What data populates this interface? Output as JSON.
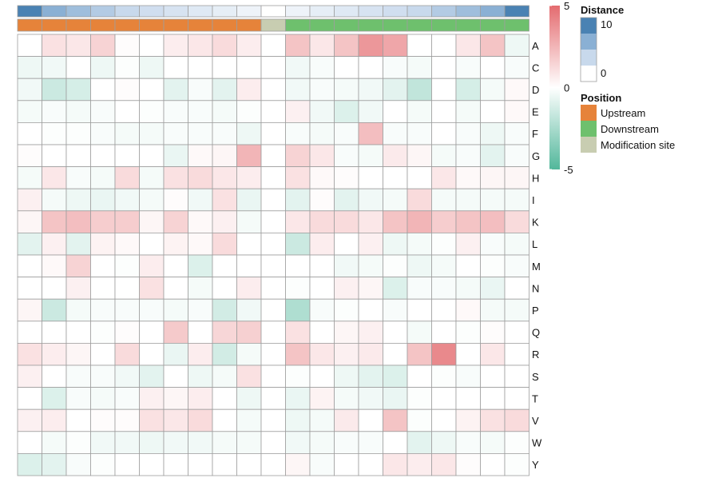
{
  "chart_data": {
    "type": "heatmap",
    "rows": [
      "A",
      "C",
      "D",
      "E",
      "F",
      "G",
      "H",
      "I",
      "K",
      "L",
      "M",
      "N",
      "P",
      "Q",
      "R",
      "S",
      "T",
      "V",
      "W",
      "Y"
    ],
    "column_count": 21,
    "distance": [
      10,
      9,
      8,
      7,
      6,
      5,
      4,
      3,
      2,
      1,
      0,
      1,
      2,
      3,
      4,
      5,
      6,
      7,
      8,
      9,
      10
    ],
    "position": [
      "Upstream",
      "Upstream",
      "Upstream",
      "Upstream",
      "Upstream",
      "Upstream",
      "Upstream",
      "Upstream",
      "Upstream",
      "Upstream",
      "Modification site",
      "Downstream",
      "Downstream",
      "Downstream",
      "Downstream",
      "Downstream",
      "Downstream",
      "Downstream",
      "Downstream",
      "Downstream",
      "Downstream"
    ],
    "values": [
      [
        0,
        1,
        0.8,
        1.5,
        0.1,
        0,
        0.6,
        0.8,
        1.2,
        0.6,
        0,
        2,
        0.8,
        2,
        3.5,
        3,
        0,
        0,
        0.8,
        2,
        -0.5
      ],
      [
        -0.5,
        -0.4,
        0,
        -0.5,
        -0.1,
        -0.5,
        0,
        0,
        0,
        0,
        0,
        -0.4,
        -0.2,
        0,
        0,
        -0.2,
        -0.3,
        0,
        -0.2,
        0,
        -0.2
      ],
      [
        -0.4,
        -1.5,
        -1.2,
        0,
        0.1,
        0,
        -0.8,
        -0.2,
        -0.8,
        0.6,
        0,
        -0.4,
        -0.2,
        -0.3,
        -0.4,
        -0.8,
        -1.8,
        0,
        -1.2,
        -0.3,
        0.2
      ],
      [
        -0.3,
        -0.2,
        -0.3,
        -0.2,
        0,
        -0.1,
        -0.2,
        -0.2,
        -0.3,
        -0.1,
        0,
        0.5,
        -0.4,
        -1,
        -0.4,
        0,
        -0.3,
        0,
        -0.3,
        0,
        0.2
      ],
      [
        0,
        -0.1,
        -0.1,
        -0.2,
        -0.3,
        -0.3,
        -0.2,
        -0.2,
        -0.2,
        -0.5,
        0,
        -0.2,
        -0.3,
        -0.2,
        2.2,
        -0.2,
        -0.2,
        0,
        -0.2,
        -0.5,
        -0.2
      ],
      [
        0.1,
        0,
        0,
        0,
        0,
        0,
        -0.6,
        0.2,
        0.3,
        2.5,
        0,
        1.5,
        0.8,
        -0.2,
        -0.3,
        0.7,
        0.3,
        -0.3,
        -0.2,
        -0.8,
        -0.2
      ],
      [
        -0.3,
        0.8,
        -0.2,
        -0.3,
        1.2,
        -0.3,
        1,
        1.2,
        0.8,
        0.6,
        0,
        1,
        0.2,
        0.1,
        0,
        0,
        0,
        0.8,
        0.2,
        0.3,
        0.3
      ],
      [
        0.5,
        -0.3,
        -0.5,
        -0.6,
        -0.4,
        -0.3,
        0.1,
        -0.4,
        1,
        -0.6,
        0,
        -0.8,
        0.1,
        -0.8,
        -0.4,
        -0.3,
        1.2,
        -0.3,
        -0.3,
        -0.3,
        -0.3
      ],
      [
        0.3,
        2,
        2.2,
        1.7,
        1.7,
        0.3,
        1.5,
        0.2,
        0.5,
        -0.3,
        0,
        0.8,
        1.2,
        1.2,
        0.8,
        2,
        2.5,
        1.7,
        2,
        2.2,
        1.2
      ],
      [
        -0.8,
        0.5,
        -0.8,
        0.4,
        0.2,
        0,
        0.4,
        0.2,
        1.2,
        0,
        0,
        -1.5,
        0.6,
        0,
        0.5,
        -0.5,
        -0.3,
        -0.1,
        0.5,
        -0.2,
        -0.3
      ],
      [
        0,
        0.2,
        1.5,
        0,
        -0.1,
        0.6,
        0,
        -1,
        0,
        0,
        0,
        0,
        0,
        -0.4,
        -0.3,
        -0.1,
        -0.5,
        -0.3,
        0,
        -0.1,
        -0.2
      ],
      [
        0,
        0,
        0.5,
        0,
        0,
        1,
        0,
        -0.3,
        0,
        0.6,
        0,
        -0.1,
        0,
        0.5,
        0.3,
        -1,
        -0.2,
        -0.2,
        -0.3,
        -0.6,
        0
      ],
      [
        0.3,
        -1.5,
        -0.3,
        -0.2,
        -0.2,
        -0.2,
        -0.3,
        -0.2,
        -1.3,
        -0.4,
        0,
        -2.3,
        -0.2,
        -0.1,
        0,
        -0.2,
        0,
        0,
        0.2,
        -0.3,
        -0.3
      ],
      [
        0,
        0,
        0,
        -0.1,
        0.1,
        0,
        1.8,
        0,
        1.4,
        1.6,
        0,
        1,
        0,
        0.3,
        0.5,
        0,
        -0.3,
        0,
        -0.1,
        0.1,
        0
      ],
      [
        1,
        0.6,
        0.3,
        0,
        1.2,
        0,
        -0.6,
        0.6,
        -1.3,
        -0.3,
        0,
        2,
        0.8,
        0.5,
        0.7,
        0,
        2,
        4,
        0,
        0.8,
        0
      ],
      [
        0.5,
        0,
        -0.2,
        -0.2,
        -0.4,
        -0.8,
        0,
        -0.5,
        -0.3,
        1,
        0,
        -0.1,
        0,
        -0.5,
        -0.8,
        -1,
        0,
        -0.1,
        -0.2,
        0,
        0
      ],
      [
        0,
        -1,
        -0.2,
        -0.3,
        -0.2,
        0.5,
        0.3,
        0.6,
        0,
        -0.5,
        0,
        -0.6,
        0.4,
        -0.3,
        -0.4,
        -0.6,
        -0.1,
        0,
        0,
        0,
        0
      ],
      [
        0.5,
        0.6,
        0,
        0.1,
        0.1,
        1,
        0.8,
        1.2,
        0,
        -0.3,
        0,
        -0.5,
        -0.3,
        0.7,
        0,
        2,
        -0.1,
        0,
        0.4,
        1,
        1.2
      ],
      [
        0,
        -0.3,
        -0.1,
        -0.4,
        -0.4,
        -0.5,
        -0.4,
        -0.4,
        -0.3,
        -0.3,
        0,
        -0.4,
        -0.3,
        -0.2,
        -0.2,
        0,
        -0.8,
        -0.5,
        -0.2,
        -0.3,
        -0.1
      ],
      [
        -1,
        -0.8,
        -0.2,
        -0.1,
        0,
        0,
        0,
        0,
        0,
        0,
        0,
        0.3,
        -0.2,
        0,
        0,
        0.8,
        0.6,
        0.8,
        0.1,
        0,
        -0.1
      ]
    ],
    "scale": {
      "min": -5,
      "max": 5,
      "mid": 0,
      "low_color": "#52b79b",
      "mid_color": "#ffffff",
      "high_color": "#e46b6f"
    },
    "legend_ticks": [
      "5",
      "0",
      "-5"
    ],
    "distance_legend": {
      "title": "Distance",
      "ticks": [
        "10",
        "0"
      ],
      "colors": [
        "#4a82b3",
        "#8ab0d4",
        "#c8d9ec",
        "#ffffff"
      ]
    },
    "position_legend": {
      "title": "Position",
      "items": [
        {
          "label": "Upstream",
          "color": "#e6833a"
        },
        {
          "label": "Downstream",
          "color": "#6ec06d"
        },
        {
          "label": "Modification site",
          "color": "#c8cdb1"
        }
      ]
    },
    "cell_border_color": "#9e9e9e",
    "grid": true,
    "legend_position": "right"
  }
}
